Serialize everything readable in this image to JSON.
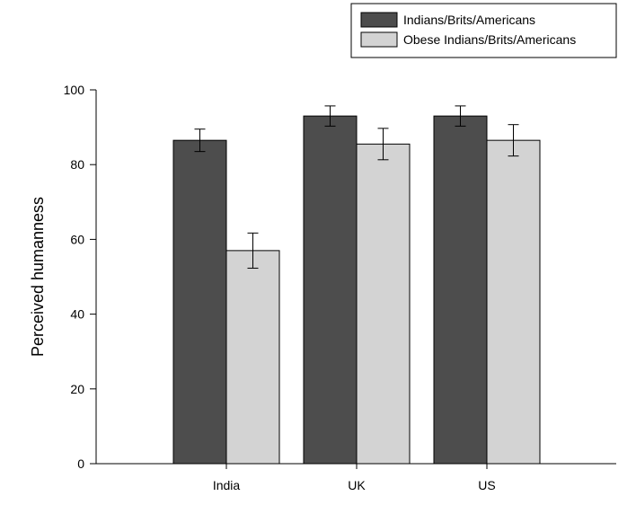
{
  "chart_data": {
    "type": "bar",
    "title": "",
    "xlabel": "",
    "ylabel": "Perceived humanness",
    "categories": [
      "India",
      "UK",
      "US"
    ],
    "ylim": [
      0,
      100
    ],
    "yticks": [
      0,
      20,
      40,
      60,
      80,
      100
    ],
    "grid": false,
    "legend_position": "top-right",
    "error_bars": true,
    "series": [
      {
        "name": "Indians/Brits/Americans",
        "color": "#4d4d4d",
        "values": [
          86.5,
          93,
          93
        ],
        "errors": [
          3,
          2.7,
          2.7
        ]
      },
      {
        "name": "Obese Indians/Brits/Americans",
        "color": "#d3d3d3",
        "values": [
          57,
          85.5,
          86.5
        ],
        "errors": [
          4.7,
          4.2,
          4.2
        ]
      }
    ]
  }
}
